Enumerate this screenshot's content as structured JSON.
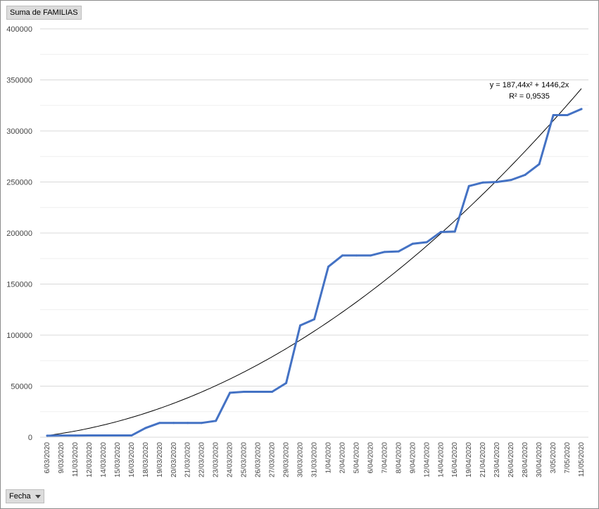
{
  "value_field_button": {
    "label": "Suma de FAMILIAS"
  },
  "axis_field_button": {
    "label": "Fecha"
  },
  "trendline": {
    "equation": "y = 187,44x² + 1446,2x",
    "r_squared": "R² = 0,9535",
    "a": 187.44,
    "b": 1446.2
  },
  "colors": {
    "series": "#4472c4",
    "trendline": "#000000",
    "grid": "#d9d9d9"
  },
  "chart_data": {
    "type": "line",
    "title": "",
    "xlabel": "",
    "ylabel": "",
    "ylim": [
      0,
      400000
    ],
    "yticks": [
      0,
      50000,
      100000,
      150000,
      200000,
      250000,
      300000,
      350000,
      400000
    ],
    "ytick_labels": [
      "0",
      "50000",
      "100000",
      "150000",
      "200000",
      "250000",
      "300000",
      "350000",
      "400000"
    ],
    "grid": true,
    "categories": [
      "6/03/2020",
      "9/03/2020",
      "11/03/2020",
      "12/03/2020",
      "14/03/2020",
      "15/03/2020",
      "16/03/2020",
      "18/03/2020",
      "19/03/2020",
      "20/03/2020",
      "21/03/2020",
      "22/03/2020",
      "23/03/2020",
      "24/03/2020",
      "25/03/2020",
      "26/03/2020",
      "27/03/2020",
      "29/03/2020",
      "30/03/2020",
      "31/03/2020",
      "1/04/2020",
      "2/04/2020",
      "5/04/2020",
      "6/04/2020",
      "7/04/2020",
      "8/04/2020",
      "9/04/2020",
      "12/04/2020",
      "14/04/2020",
      "16/04/2020",
      "19/04/2020",
      "21/04/2020",
      "23/04/2020",
      "26/04/2020",
      "28/04/2020",
      "30/04/2020",
      "3/05/2020",
      "7/05/2020",
      "11/05/2020"
    ],
    "series": [
      {
        "values": [
          1500,
          1600,
          1600,
          1700,
          1700,
          1700,
          1700,
          9000,
          14000,
          14000,
          14000,
          14000,
          16000,
          43500,
          44500,
          44500,
          44500,
          53000,
          109500,
          115500,
          167000,
          178000,
          178000,
          178000,
          181500,
          182000,
          189500,
          191000,
          201000,
          201500,
          246000,
          249500,
          250000,
          252000,
          257000,
          267500,
          315500,
          315500,
          321500
        ]
      }
    ]
  }
}
